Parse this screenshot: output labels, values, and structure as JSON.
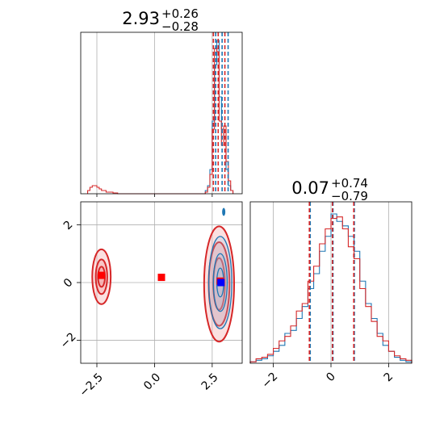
{
  "chart_data": [
    {
      "type": "histogram",
      "panel": "marginal-x",
      "title": {
        "value": "2.93",
        "plus": "+0.26",
        "minus": "−0.28"
      },
      "xlim": [
        -3.2,
        3.8
      ],
      "grid": true,
      "series": [
        {
          "name": "",
          "color": "#1f77b4",
          "edges": [
            2.2,
            2.3,
            2.4,
            2.5,
            2.6,
            2.7,
            2.8,
            2.9,
            3.0,
            3.1,
            3.2,
            3.3,
            3.4
          ],
          "counts": [
            0.02,
            0.05,
            0.15,
            0.45,
            0.8,
            0.95,
            0.6,
            0.4,
            0.35,
            0.15,
            0.05,
            0.02
          ]
        },
        {
          "name": "",
          "color": "#d62728",
          "edges": [
            -2.9,
            -2.8,
            -2.7,
            -2.6,
            -2.5,
            -2.4,
            -2.3,
            -2.2,
            -2.1,
            -2.0,
            -1.9,
            -1.8,
            -1.7,
            -1.6,
            2.2,
            2.3,
            2.4,
            2.5,
            2.6,
            2.7,
            2.8,
            2.9,
            3.0,
            3.1,
            3.2,
            3.3,
            3.4
          ],
          "counts": [
            0.02,
            0.04,
            0.05,
            0.05,
            0.04,
            0.03,
            0.02,
            0.02,
            0.01,
            0.01,
            0.01,
            0.005,
            0.005,
            0,
            0.01,
            0.04,
            0.12,
            0.4,
            0.9,
            0.88,
            0.45,
            0.3,
            0.42,
            0.2,
            0.08,
            0.02
          ]
        }
      ],
      "quantile_lines": [
        {
          "x": 2.65,
          "color": "#1f77b4"
        },
        {
          "x": 2.93,
          "color": "#1f77b4"
        },
        {
          "x": 3.19,
          "color": "#1f77b4"
        },
        {
          "x": 2.55,
          "color": "#d62728"
        },
        {
          "x": 2.76,
          "color": "#d62728"
        },
        {
          "x": 3.05,
          "color": "#d62728"
        }
      ]
    },
    {
      "type": "contour",
      "panel": "joint",
      "xlim": [
        -3.2,
        3.8
      ],
      "ylim": [
        -2.8,
        2.8
      ],
      "xticks": [
        -2.5,
        0.0,
        2.5
      ],
      "xtick_labels": [
        "−2.5",
        "0.0",
        "2.5"
      ],
      "yticks": [
        -2,
        0,
        2
      ],
      "ytick_labels": [
        "−2",
        "0",
        "2"
      ],
      "grid": true,
      "red_clusters": [
        {
          "cx": -2.3,
          "cy": 0.2,
          "rx": [
            0.15,
            0.25,
            0.4
          ],
          "ry": [
            0.35,
            0.6,
            0.95
          ]
        },
        {
          "cx": 2.8,
          "cy": -0.05,
          "rx": [
            0.25,
            0.45,
            0.65
          ],
          "ry": [
            0.9,
            1.45,
            2.0
          ]
        }
      ],
      "blue_cluster": {
        "cx": 2.85,
        "cy": 0.0,
        "rx": [
          0.15,
          0.3,
          0.5
        ],
        "ry": [
          0.5,
          1.0,
          1.6
        ]
      },
      "blue_blob": {
        "x": 3.0,
        "y": 2.45
      },
      "markers": [
        {
          "x": -2.3,
          "y": 0.25,
          "color": "#ff0000"
        },
        {
          "x": 0.3,
          "y": 0.18,
          "color": "#ff0000"
        },
        {
          "x": 2.85,
          "y": 0.05,
          "color": "#ff0000"
        },
        {
          "x": 2.88,
          "y": 0.0,
          "color": "#0000ff"
        }
      ],
      "colors": {
        "red_line": "#d62728",
        "red_fill": "#f4a6a6",
        "blue_line": "#1f77b4",
        "blue_fill": "#9ec3e3"
      }
    },
    {
      "type": "histogram",
      "panel": "marginal-y",
      "title": {
        "value": "0.07",
        "plus": "+0.74",
        "minus": "−0.79"
      },
      "xlim": [
        -2.8,
        2.8
      ],
      "xticks": [
        -2,
        0,
        2
      ],
      "xtick_labels": [
        "−2",
        "0",
        "2"
      ],
      "grid": true,
      "series": [
        {
          "name": "",
          "color": "#1f77b4",
          "edges": [
            -2.8,
            -2.6,
            -2.4,
            -2.2,
            -2.0,
            -1.8,
            -1.6,
            -1.4,
            -1.2,
            -1.0,
            -0.8,
            -0.6,
            -0.4,
            -0.2,
            0.0,
            0.2,
            0.4,
            0.6,
            0.8,
            1.0,
            1.2,
            1.4,
            1.6,
            1.8,
            2.0,
            2.2,
            2.4,
            2.6,
            2.8
          ],
          "counts": [
            0.01,
            0.02,
            0.03,
            0.05,
            0.08,
            0.12,
            0.2,
            0.22,
            0.3,
            0.38,
            0.5,
            0.6,
            0.75,
            0.85,
            1.0,
            0.95,
            0.92,
            0.85,
            0.75,
            0.55,
            0.4,
            0.3,
            0.2,
            0.12,
            0.08,
            0.04,
            0.02,
            0.01
          ]
        },
        {
          "name": "",
          "color": "#d62728",
          "edges": [
            -2.8,
            -2.6,
            -2.4,
            -2.2,
            -2.0,
            -1.8,
            -1.6,
            -1.4,
            -1.2,
            -1.0,
            -0.8,
            -0.6,
            -0.4,
            -0.2,
            0.0,
            0.2,
            0.4,
            0.6,
            0.8,
            1.0,
            1.2,
            1.4,
            1.6,
            1.8,
            2.0,
            2.2,
            2.4,
            2.6,
            2.8
          ],
          "counts": [
            0.01,
            0.03,
            0.04,
            0.06,
            0.1,
            0.15,
            0.18,
            0.25,
            0.35,
            0.4,
            0.55,
            0.65,
            0.8,
            0.9,
            0.97,
            0.98,
            0.9,
            0.78,
            0.7,
            0.5,
            0.38,
            0.28,
            0.18,
            0.15,
            0.08,
            0.05,
            0.03,
            0.02
          ]
        }
      ],
      "quantile_lines": [
        {
          "x": -0.72,
          "color": "#1f77b4"
        },
        {
          "x": 0.07,
          "color": "#1f77b4"
        },
        {
          "x": 0.81,
          "color": "#1f77b4"
        },
        {
          "x": -0.75,
          "color": "#d62728"
        },
        {
          "x": 0.05,
          "color": "#d62728"
        },
        {
          "x": 0.79,
          "color": "#d62728"
        }
      ]
    }
  ]
}
